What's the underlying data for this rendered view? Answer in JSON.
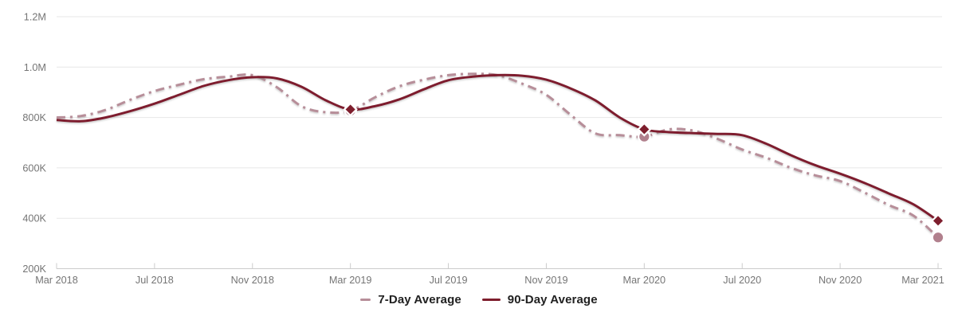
{
  "chart_data": {
    "type": "line",
    "title": "",
    "x_axis": {
      "months_total": 37,
      "start_month": "Mar 2018",
      "end_month": "Mar 2021",
      "tick_month_indices": [
        0,
        4,
        8,
        12,
        16,
        20,
        24,
        28,
        32,
        36
      ],
      "tick_labels": [
        "Mar 2018",
        "Jul 2018",
        "Nov 2018",
        "Mar 2019",
        "Jul 2019",
        "Nov 2019",
        "Mar 2020",
        "Jul 2020",
        "Nov 2020",
        "Mar 2021"
      ]
    },
    "y_axis": {
      "tick_values_thousands": [
        200,
        400,
        600,
        800,
        1000,
        1200
      ],
      "tick_labels": [
        "200K",
        "400K",
        "600K",
        "800K",
        "1.0M",
        "1.2M"
      ],
      "range_thousands": [
        200,
        1200
      ]
    },
    "series": [
      {
        "name": "7-Day Average",
        "style": "dashed",
        "color": "#b78e99",
        "values_thousands": [
          800,
          806,
          830,
          870,
          905,
          930,
          952,
          962,
          968,
          920,
          845,
          821,
          827,
          880,
          924,
          950,
          968,
          973,
          968,
          935,
          890,
          810,
          737,
          730,
          724,
          753,
          748,
          715,
          673,
          640,
          600,
          570,
          548,
          502,
          452,
          410,
          324
        ]
      },
      {
        "name": "90-Day Average",
        "style": "solid",
        "color": "#7e1e2d",
        "values_thousands": [
          790,
          785,
          800,
          825,
          855,
          890,
          925,
          948,
          960,
          955,
          922,
          868,
          832,
          845,
          872,
          912,
          948,
          962,
          968,
          966,
          950,
          915,
          868,
          800,
          753,
          742,
          738,
          735,
          730,
          695,
          650,
          610,
          577,
          540,
          498,
          455,
          390
        ]
      }
    ],
    "markers": [
      {
        "series": "7-Day Average",
        "shape": "circle",
        "month_index": 12,
        "value_thousands": 827
      },
      {
        "series": "7-Day Average",
        "shape": "circle",
        "month_index": 24,
        "value_thousands": 724
      },
      {
        "series": "7-Day Average",
        "shape": "circle",
        "month_index": 36,
        "value_thousands": 324
      },
      {
        "series": "90-Day Average",
        "shape": "diamond",
        "month_index": 12,
        "value_thousands": 832
      },
      {
        "series": "90-Day Average",
        "shape": "diamond",
        "month_index": 24,
        "value_thousands": 753
      },
      {
        "series": "90-Day Average",
        "shape": "diamond",
        "month_index": 36,
        "value_thousands": 390
      }
    ],
    "legend": {
      "position": "bottom-center",
      "items": [
        "7-Day Average",
        "90-Day Average"
      ]
    },
    "grid": {
      "show_horizontal": true,
      "color": "#e7e7e7"
    },
    "colors": {
      "axis_line": "#cccccc",
      "tick_text": "#757575",
      "legend_text": "#212121",
      "background": "#ffffff",
      "circle_marker": "#b1808d",
      "diamond_marker": "#7e1e2d"
    }
  }
}
